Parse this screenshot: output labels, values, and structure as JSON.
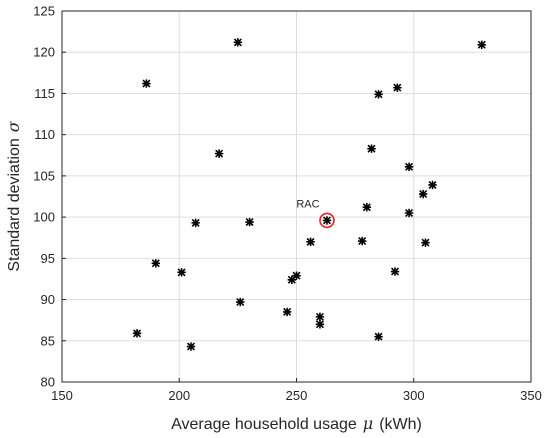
{
  "chart_data": {
    "type": "scatter",
    "xlabel_text": "Average household usage",
    "xlabel_symbol": "μ",
    "xlabel_unit": "(kWh)",
    "ylabel_text": "Standard deviation",
    "ylabel_symbol": "σ",
    "xlim": [
      150,
      350
    ],
    "ylim": [
      80,
      125
    ],
    "xticks": [
      150,
      200,
      250,
      300,
      350
    ],
    "yticks": [
      80,
      85,
      90,
      95,
      100,
      105,
      110,
      115,
      120,
      125
    ],
    "grid": true,
    "marker": "asterisk",
    "marker_color": "#000000",
    "points": [
      {
        "x": 182,
        "y": 85.9
      },
      {
        "x": 186,
        "y": 116.2
      },
      {
        "x": 190,
        "y": 94.4
      },
      {
        "x": 201,
        "y": 93.3
      },
      {
        "x": 205,
        "y": 84.3
      },
      {
        "x": 207,
        "y": 99.3
      },
      {
        "x": 217,
        "y": 107.7
      },
      {
        "x": 225,
        "y": 121.2
      },
      {
        "x": 226,
        "y": 89.7
      },
      {
        "x": 230,
        "y": 99.4
      },
      {
        "x": 246,
        "y": 88.5
      },
      {
        "x": 248,
        "y": 92.4
      },
      {
        "x": 250,
        "y": 92.9
      },
      {
        "x": 256,
        "y": 97.0
      },
      {
        "x": 260,
        "y": 87.9
      },
      {
        "x": 260,
        "y": 87.0
      },
      {
        "x": 263,
        "y": 99.6
      },
      {
        "x": 278,
        "y": 97.1
      },
      {
        "x": 280,
        "y": 101.2
      },
      {
        "x": 282,
        "y": 108.3
      },
      {
        "x": 285,
        "y": 114.9
      },
      {
        "x": 285,
        "y": 85.5
      },
      {
        "x": 292,
        "y": 93.4
      },
      {
        "x": 293,
        "y": 115.7
      },
      {
        "x": 298,
        "y": 106.1
      },
      {
        "x": 298,
        "y": 100.5
      },
      {
        "x": 304,
        "y": 102.8
      },
      {
        "x": 305,
        "y": 96.9
      },
      {
        "x": 308,
        "y": 103.9
      },
      {
        "x": 329,
        "y": 120.9
      }
    ],
    "annotation": {
      "text": "RAC",
      "x": 263,
      "y": 99.6,
      "circle_color": "#e0201f"
    }
  }
}
